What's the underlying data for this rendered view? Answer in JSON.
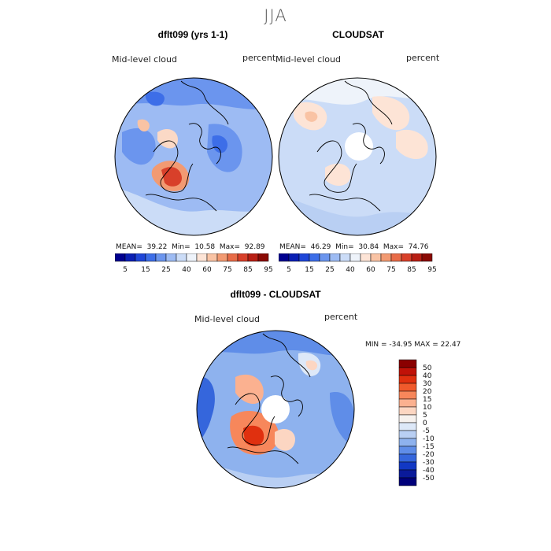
{
  "season": "JJA",
  "panels": [
    {
      "title": "dflt099 (yrs 1-1)",
      "variable": "Mid-level cloud",
      "units": "percent",
      "mean_label": "MEAN=",
      "mean": "39.22",
      "min_label": "Min=",
      "min": "10.58",
      "max_label": "Max=",
      "max": "92.89"
    },
    {
      "title": "CLOUDSAT",
      "variable": "Mid-level cloud",
      "units": "percent",
      "mean_label": "MEAN=",
      "mean": "46.29",
      "min_label": "Min=",
      "min": "30.84",
      "max_label": "Max=",
      "max": "74.76"
    },
    {
      "title": "dflt099 - CLOUDSAT",
      "variable": "Mid-level cloud",
      "units": "percent",
      "range_text": "MIN = -34.95  MAX =  22.47"
    }
  ],
  "abs_colorbar": {
    "labels": [
      "5",
      "15",
      "25",
      "40",
      "60",
      "75",
      "85",
      "95"
    ],
    "colors": [
      "#00008f",
      "#0a1fb4",
      "#1f46d8",
      "#3d6ee8",
      "#6b95ee",
      "#9dbbf3",
      "#cbdcf7",
      "#eef3fa",
      "#fde4d6",
      "#f9c3a4",
      "#f29a72",
      "#e86c48",
      "#d8402a",
      "#b81f14",
      "#8a0a05"
    ]
  },
  "diff_colorbar": {
    "labels": [
      "50",
      "40",
      "30",
      "20",
      "15",
      "10",
      "5",
      "0",
      "-5",
      "-10",
      "-15",
      "-20",
      "-30",
      "-40",
      "-50"
    ],
    "colors": [
      "#8a0000",
      "#c01208",
      "#e0300f",
      "#f05a2c",
      "#f7875b",
      "#fbb190",
      "#fcd6c2",
      "#f6f1ee",
      "#dde8f8",
      "#b9cff3",
      "#8eb2ee",
      "#5f8de8",
      "#3566dc",
      "#1238c4",
      "#0a1a9a",
      "#00007a"
    ]
  }
}
